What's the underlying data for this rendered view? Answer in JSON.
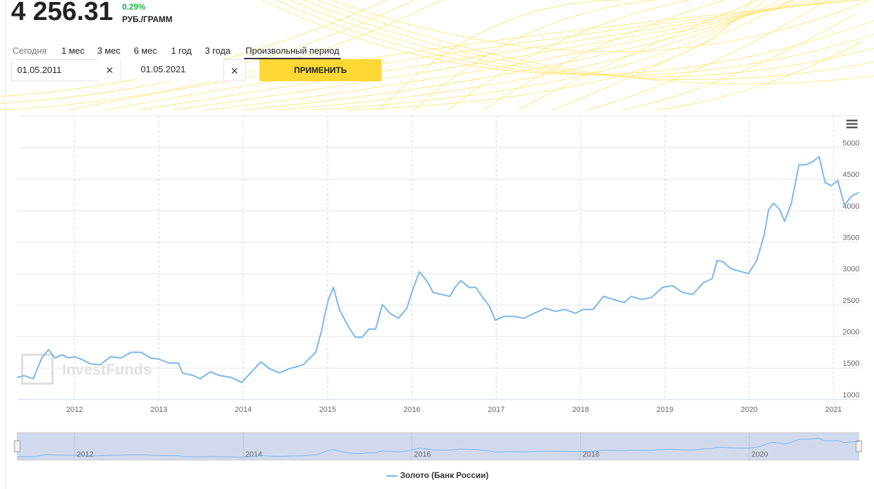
{
  "header": {
    "price": "4 256.31",
    "change": "0.29%",
    "unit": "РУБ./ГРАММ"
  },
  "tabs": [
    "Сегодня",
    "1 мес",
    "3 мес",
    "6 мес",
    "1 год",
    "3 года",
    "Произвольный период"
  ],
  "date_from": "01.05.2011",
  "date_to": "01.05.2021",
  "apply_button": "ПРИМЕНИТЬ",
  "watermark": "InvestFunds",
  "chart_data": {
    "type": "line",
    "x": [
      2011.32,
      2011.4,
      2011.51,
      2011.61,
      2011.69,
      2011.77,
      2011.85,
      2011.93,
      2012.0,
      2012.08,
      2012.18,
      2012.3,
      2012.43,
      2012.55,
      2012.67,
      2012.79,
      2012.9,
      2013.0,
      2013.12,
      2013.23,
      2013.28,
      2013.41,
      2013.49,
      2013.61,
      2013.72,
      2013.86,
      2013.98,
      2014.1,
      2014.21,
      2014.31,
      2014.43,
      2014.55,
      2014.71,
      2014.86,
      2014.93,
      2014.97,
      2015.01,
      2015.07,
      2015.14,
      2015.25,
      2015.33,
      2015.41,
      2015.49,
      2015.57,
      2015.65,
      2015.74,
      2015.84,
      2015.94,
      2016.01,
      2016.09,
      2016.19,
      2016.25,
      2016.35,
      2016.45,
      2016.51,
      2016.58,
      2016.68,
      2016.76,
      2016.84,
      2016.92,
      2016.99,
      2017.09,
      2017.21,
      2017.33,
      2017.45,
      2017.58,
      2017.7,
      2017.82,
      2017.94,
      2018.03,
      2018.15,
      2018.27,
      2018.39,
      2018.52,
      2018.6,
      2018.72,
      2018.84,
      2018.97,
      2019.09,
      2019.21,
      2019.33,
      2019.46,
      2019.56,
      2019.62,
      2019.69,
      2019.78,
      2019.91,
      2019.99,
      2020.09,
      2020.18,
      2020.23,
      2020.29,
      2020.36,
      2020.42,
      2020.5,
      2020.59,
      2020.67,
      2020.75,
      2020.83,
      2020.9,
      2020.97,
      2021.05,
      2021.13,
      2021.21,
      2021.3
    ],
    "series": [
      {
        "name": "Золото (Банк России)",
        "color": "#7cb5ec",
        "values": [
          1350,
          1380,
          1330,
          1660,
          1790,
          1660,
          1710,
          1660,
          1680,
          1640,
          1570,
          1550,
          1680,
          1660,
          1750,
          1750,
          1660,
          1640,
          1580,
          1580,
          1420,
          1380,
          1330,
          1440,
          1380,
          1350,
          1270,
          1440,
          1600,
          1490,
          1420,
          1490,
          1550,
          1750,
          2100,
          2370,
          2590,
          2780,
          2430,
          2150,
          1990,
          1990,
          2120,
          2120,
          2510,
          2370,
          2290,
          2450,
          2750,
          3030,
          2860,
          2700,
          2670,
          2640,
          2780,
          2890,
          2780,
          2780,
          2620,
          2480,
          2260,
          2320,
          2320,
          2290,
          2370,
          2450,
          2400,
          2430,
          2370,
          2430,
          2430,
          2640,
          2590,
          2540,
          2640,
          2590,
          2620,
          2780,
          2810,
          2700,
          2670,
          2860,
          2920,
          3210,
          3190,
          3080,
          3030,
          3000,
          3210,
          3630,
          4020,
          4120,
          4020,
          3830,
          4120,
          4730,
          4730,
          4780,
          4860,
          4450,
          4400,
          4480,
          4090,
          4230,
          4290
        ]
      }
    ],
    "xlim": [
      2011.32,
      2021.3
    ],
    "xticks": [
      2012,
      2013,
      2014,
      2015,
      2016,
      2017,
      2018,
      2019,
      2020,
      2021
    ],
    "ylim": [
      1000,
      5500
    ],
    "yticks": [
      1000,
      1500,
      2000,
      2500,
      3000,
      3500,
      4000,
      4500,
      5000
    ],
    "navigator_xticks": [
      2012,
      2014,
      2016,
      2018,
      2020
    ],
    "grid": true
  }
}
